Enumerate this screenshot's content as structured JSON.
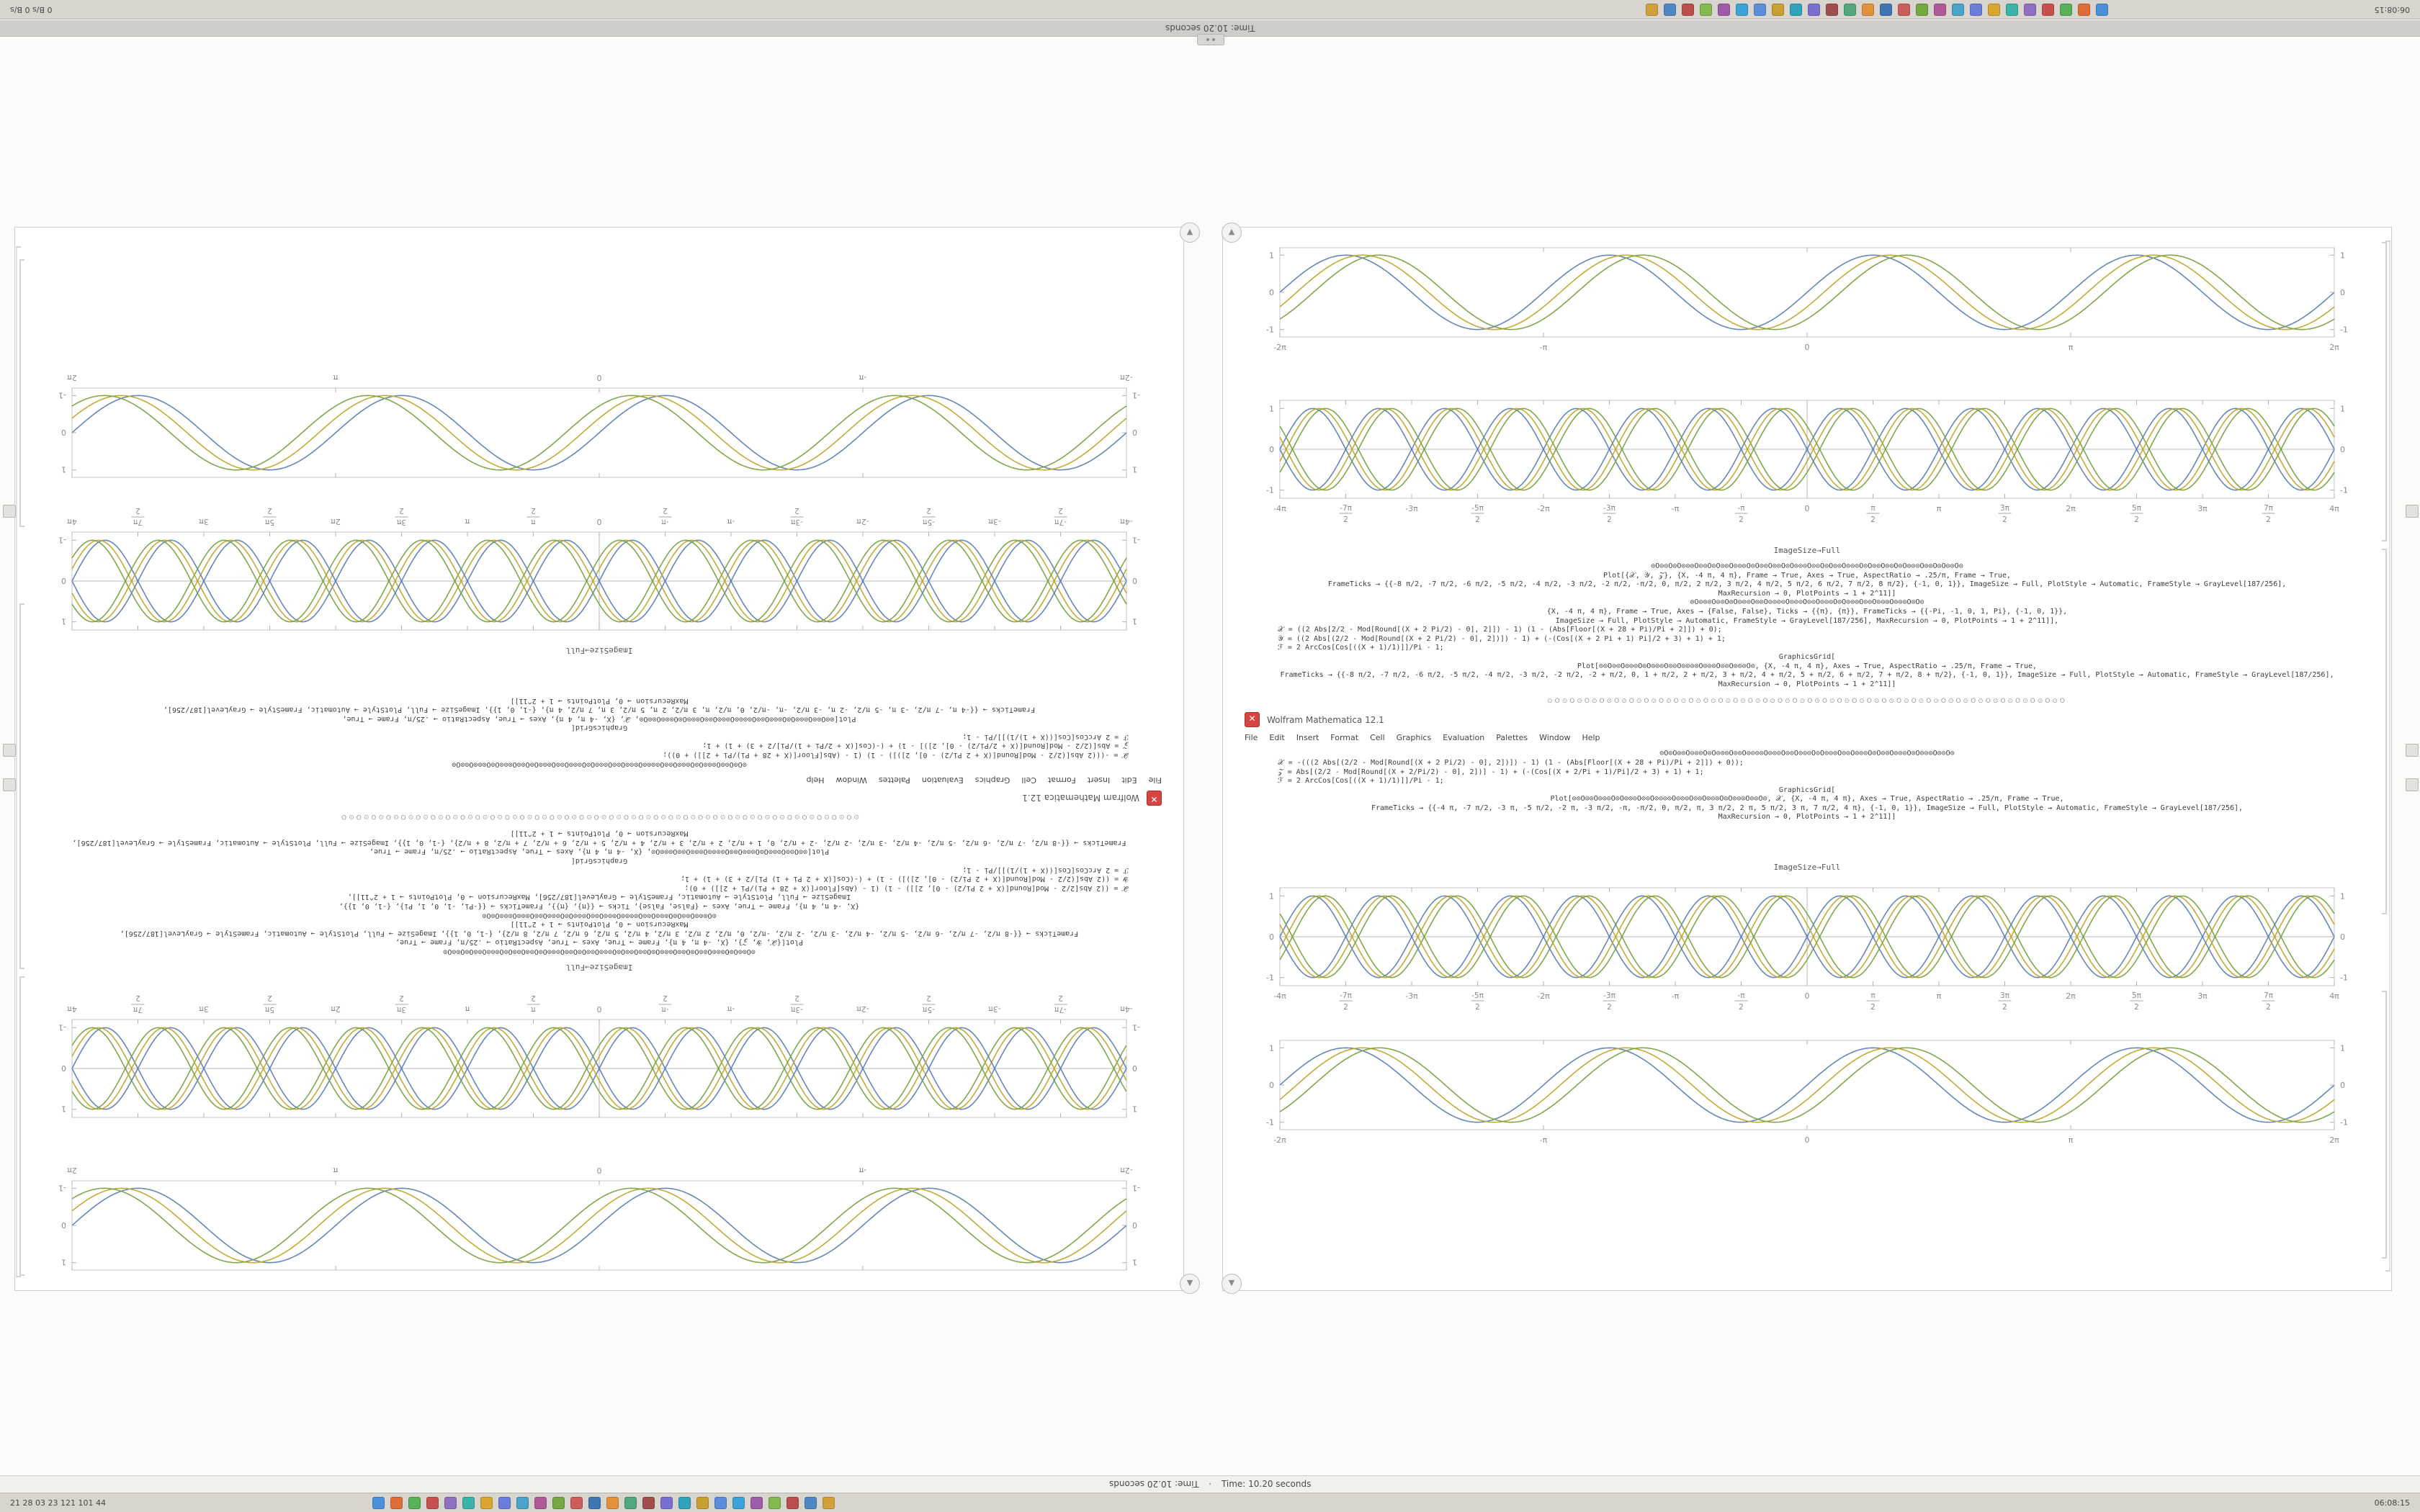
{
  "meta": {
    "app": "Wolfram Mathematica"
  },
  "top_bar": {
    "left_text": "06:08:15",
    "right_text": "0 B/s   0 B/s",
    "icons": [
      "#4a90d9",
      "#e06c3a",
      "#58b058",
      "#c94f4f",
      "#8f6fc0",
      "#3bb3a9",
      "#d8a62f",
      "#6b7ddb",
      "#4aa3c9",
      "#b05a9a",
      "#74a840",
      "#cc5d5d",
      "#3f77b5",
      "#e0913a",
      "#52a87c",
      "#a04f4f",
      "#7a6fd0",
      "#2fa3b9",
      "#c8a030",
      "#5b8ddb",
      "#3aa3d9",
      "#a05aaa",
      "#84b850",
      "#bc4d4d",
      "#4f87c5",
      "#d0a13a"
    ]
  },
  "bottom_bar": {
    "left_text": "21 28 03 23 121 101 44",
    "right_text": "06:08:15",
    "icons": [
      "#4a90d9",
      "#e06c3a",
      "#58b058",
      "#c94f4f",
      "#8f6fc0",
      "#3bb3a9",
      "#d8a62f",
      "#6b7ddb",
      "#4aa3c9",
      "#b05a9a",
      "#74a840",
      "#cc5d5d",
      "#3f77b5",
      "#e0913a",
      "#52a87c",
      "#a04f4f",
      "#7a6fd0",
      "#2fa3b9",
      "#c8a030",
      "#5b8ddb",
      "#3aa3d9",
      "#a05aaa",
      "#84b850",
      "#bc4d4d",
      "#4f87c5",
      "#d0a13a"
    ]
  },
  "title_strip": {
    "text": "Time: 10.20 seconds"
  },
  "status_strip": {
    "rotated_text": "Time: 10.20 seconds",
    "separator": "·",
    "text": "Time: 10.20 seconds"
  },
  "window": {
    "close_glyph": "✕",
    "title": "Wolfram Mathematica 12.1",
    "menu": [
      "File",
      "Edit",
      "Insert",
      "Format",
      "Cell",
      "Graphics",
      "Evaluation",
      "Palettes",
      "Window",
      "Help"
    ],
    "toolbar_glyphs": "⊙O⊙O⊙O⊙O⊙O⊙O⊙O⊙O⊙O⊙O⊙O⊙O⊙O⊙O⊙O⊙O⊙O⊙O⊙O⊙O⊙O⊙O⊙O⊙O⊙O⊙O⊙O⊙O⊙O⊙O⊙O⊙O⊙O⊙O⊙O"
  },
  "notebook": {
    "label_mid": "ImageSize→Full",
    "label_lower": "ImageSize→Full",
    "code_upper": [
      {
        "t": "⊙O⊙⊙O⊙O⊙⊙⊙O⊙⊙O⊙O⊙⊙O⊙⊙⊙O⊙O⊙⊙O⊙⊙O⊙O⊙⊙⊙O⊙⊙O⊙O⊙⊙O⊙⊙⊙O⊙O⊙⊙O⊙⊙O⊙O⊙⊙⊙O⊙⊙O⊙O⊙⊙O⊙",
        "a": "c"
      },
      {
        "t": "Plot[{𝒳, 𝒴, 𝒵}, {X, -4 π, 4 π}, Frame → True, Axes → True, AspectRatio → .25/π, Frame → True,",
        "a": "c"
      },
      {
        "t": "FrameTicks → {{-8 π/2, -7 π/2, -6 π/2, -5 π/2, -4 π/2, -3 π/2, -2 π/2, -π/2, 0, π/2, 2 π/2, 3 π/2, 4 π/2, 5 π/2, 6 π/2, 7 π/2, 8 π/2}, {-1, 0, 1}}, ImageSize → Full, PlotStyle → Automatic, FrameStyle → GrayLevel[187/256],",
        "a": "c"
      },
      {
        "t": "MaxRecursion → 0, PlotPoints → 1 + 2^11]]",
        "a": "c"
      },
      {
        "t": "⊙O⊙⊙⊙O⊙⊙O⊙O⊙⊙⊙O⊙⊙O⊙⊙⊙⊙O⊙⊙⊙O⊙⊙O⊙⊙⊙O⊙O⊙⊙⊙O⊙⊙O⊙⊙⊙O⊙⊙⊙O⊙O⊙",
        "a": "c"
      },
      {
        "t": "{X, -4 π, 4 π}, Frame → True, Axes → {False, False}, Ticks → {{π}, {π}}, FrameTicks → {{-Pi, -1, 0, 1, Pi}, {-1, 0, 1}},",
        "a": "c"
      },
      {
        "t": "ImageSize → Full, PlotStyle → Automatic, FrameStyle → GrayLevel[187/256], MaxRecursion → 0, PlotPoints → 1 + 2^11]],",
        "a": "c"
      },
      {
        "t": "𝒳 = ((2 Abs[2/2 - Mod[Round[(X + 2 Pi/2) - 0], 2]]) - 1) (1 - (Abs[Floor[(X + 28 + Pi)/Pi + 2]]) + 0);",
        "a": "l"
      },
      {
        "t": "𝒴 = ((2 Abs[(2/2 - Mod[Round[(X + 2 Pi/2) - 0], 2])]) - 1) + (-(Cos[(X + 2 Pi + 1) Pi]/2 + 3) + 1) + 1;",
        "a": "l"
      },
      {
        "t": "ℱ = 2 ArcCos[Cos[((X + 1)/1)]]/Pi - 1;",
        "a": "l"
      },
      {
        "t": "GraphicsGrid[",
        "a": "c"
      },
      {
        "t": "Plot[⊙⊙O⊙⊙O⊙⊙⊙O⊙O⊙⊙⊙O⊙⊙O⊙⊙⊙⊙O⊙⊙⊙O⊙⊙O⊙⊙⊙O⊙,  {X, -4 π, 4 π}, Axes → True, AspectRatio → .25/π, Frame → True,",
        "a": "c"
      },
      {
        "t": "FrameTicks → {{-8 π/2, -7 π/2, -6 π/2, -5 π/2, -4 π/2, -3 π/2, -2 π/2, -2 + π/2, 0, 1 + π/2, 2 + π/2, 3 + π/2, 4 + π/2, 5 + π/2, 6 + π/2, 7 + π/2, 8 + π/2}, {-1, 0, 1}}, ImageSize → Full, PlotStyle → Automatic, FrameStyle → GrayLevel[187/256],",
        "a": "c"
      },
      {
        "t": "MaxRecursion → 0, PlotPoints → 1 + 2^11]]",
        "a": "c"
      }
    ],
    "code_lower": [
      {
        "t": "⊙O⊙O⊙⊙O⊙⊙⊙O⊙O⊙⊙⊙O⊙⊙O⊙⊙⊙⊙O⊙⊙⊙O⊙⊙O⊙⊙⊙O⊙O⊙⊙⊙O⊙⊙O⊙⊙⊙O⊙O⊙⊙O⊙⊙⊙O⊙O⊙⊙⊙O⊙⊙O⊙",
        "a": "c"
      },
      {
        "t": "𝒳 = -(((2 Abs[(2/2 - Mod[Round[(X + 2 Pi/2) - 0], 2])]) - 1) (1 - (Abs[Floor[(X + 28 + Pi)/Pi + 2]]) + 0));",
        "a": "l"
      },
      {
        "t": "𝒵 = Abs[(2/2 - Mod[Round[(X + 2/Pi/2) - 0], 2])] - 1) + (-(Cos[(X + 2/Pi + 1)/Pi]/2 + 3) + 1) + 1;",
        "a": "l"
      },
      {
        "t": "ℱ = 2 ArcCos[Cos[((X + 1)/1)]]/Pi - 1;",
        "a": "l"
      },
      {
        "t": "GraphicsGrid[",
        "a": "c"
      },
      {
        "t": "Plot[⊙⊙O⊙⊙O⊙⊙⊙O⊙O⊙⊙⊙O⊙⊙O⊙⊙⊙⊙O⊙⊙⊙O⊙⊙O⊙⊙⊙O⊙O⊙⊙⊙O⊙⊙O⊙,  𝒳, {X, -4 π, 4 π}, Axes → True, AspectRatio → .25/π, Frame → True,",
        "a": "c"
      },
      {
        "t": "FrameTicks → {{-4 π, -7 π/2, -3 π, -5 π/2, -2 π, -3 π/2, -π, -π/2, 0, π/2, π, 3 π/2, 2 π, 5 π/2, 3 π, 7 π/2, 4 π}, {-1, 0, 1}}, ImageSize → Full, PlotStyle → Automatic, FrameStyle → GrayLevel[187/256],",
        "a": "c"
      },
      {
        "t": "MaxRecursion → 0, PlotPoints → 1 + 2^11]]",
        "a": "c"
      }
    ]
  },
  "chart_data": [
    {
      "id": "plot-top",
      "type": "line",
      "x_range": [
        -6.2832,
        6.2832
      ],
      "y_range": [
        -1.2,
        1.2
      ],
      "axes": false,
      "x_ticks": [
        {
          "v": -6.2832,
          "l": "-2π"
        },
        {
          "v": -3.1416,
          "l": "-π"
        },
        {
          "v": 0,
          "l": "0"
        },
        {
          "v": 3.1416,
          "l": "π"
        },
        {
          "v": 6.2832,
          "l": "2π"
        }
      ],
      "y_ticks": [
        {
          "v": -1,
          "l": "-1"
        },
        {
          "v": 0,
          "l": "0"
        },
        {
          "v": 1,
          "l": "1"
        }
      ],
      "series": [
        {
          "name": "sin(2x)",
          "freq": 2,
          "phase": 0,
          "amp": 1,
          "sign": 1,
          "color": "#5e81b5"
        },
        {
          "name": "sin(2x-0.4)",
          "freq": 2,
          "phase": -0.4,
          "amp": 1,
          "sign": 1,
          "color": "#bfa72e"
        },
        {
          "name": "sin(2x-0.8)",
          "freq": 2,
          "phase": -0.8,
          "amp": 1,
          "sign": 1,
          "color": "#79a341"
        }
      ]
    },
    {
      "id": "plot-upper-braid",
      "type": "line",
      "x_range": [
        -12.5664,
        12.5664
      ],
      "y_range": [
        -1.2,
        1.2
      ],
      "axes": true,
      "x_ticks": [
        {
          "v": -12.5664,
          "l": "-4π"
        },
        {
          "v": -10.9956,
          "l": "-7π/2"
        },
        {
          "v": -9.4248,
          "l": "-3π"
        },
        {
          "v": -7.854,
          "l": "-5π/2"
        },
        {
          "v": -6.2832,
          "l": "-2π"
        },
        {
          "v": -4.7124,
          "l": "-3π/2"
        },
        {
          "v": -3.1416,
          "l": "-π"
        },
        {
          "v": -1.5708,
          "l": "-π/2"
        },
        {
          "v": 0,
          "l": "0"
        },
        {
          "v": 1.5708,
          "l": "π/2"
        },
        {
          "v": 3.1416,
          "l": "π"
        },
        {
          "v": 4.7124,
          "l": "3π/2"
        },
        {
          "v": 6.2832,
          "l": "2π"
        },
        {
          "v": 7.854,
          "l": "5π/2"
        },
        {
          "v": 9.4248,
          "l": "3π"
        },
        {
          "v": 10.9956,
          "l": "7π/2"
        },
        {
          "v": 12.5664,
          "l": "4π"
        }
      ],
      "y_ticks": [
        {
          "v": -1,
          "l": "-1"
        },
        {
          "v": 0,
          "l": "0"
        },
        {
          "v": 1,
          "l": "1"
        }
      ],
      "series": [
        {
          "name": "sin(2x)",
          "freq": 2,
          "phase": 0,
          "amp": 1,
          "sign": 1,
          "color": "#5e81b5"
        },
        {
          "name": "sin(2x-0.3)",
          "freq": 2,
          "phase": -0.3,
          "amp": 1,
          "sign": 1,
          "color": "#bfa72e"
        },
        {
          "name": "sin(2x-0.6)",
          "freq": 2,
          "phase": -0.6,
          "amp": 1,
          "sign": 1,
          "color": "#79a341"
        },
        {
          "name": "-sin(2x)",
          "freq": 2,
          "phase": 0,
          "amp": 1,
          "sign": -1,
          "color": "#5e81b5"
        },
        {
          "name": "-sin(2x-0.3)",
          "freq": 2,
          "phase": -0.3,
          "amp": 1,
          "sign": -1,
          "color": "#bfa72e"
        },
        {
          "name": "-sin(2x-0.6)",
          "freq": 2,
          "phase": -0.6,
          "amp": 1,
          "sign": -1,
          "color": "#79a341"
        }
      ]
    },
    {
      "id": "plot-lower-braid",
      "type": "line",
      "x_range": [
        -12.5664,
        12.5664
      ],
      "y_range": [
        -1.2,
        1.2
      ],
      "axes": true,
      "x_ticks": [
        {
          "v": -12.5664,
          "l": "-4π"
        },
        {
          "v": -10.9956,
          "l": "-7π/2"
        },
        {
          "v": -9.4248,
          "l": "-3π"
        },
        {
          "v": -7.854,
          "l": "-5π/2"
        },
        {
          "v": -6.2832,
          "l": "-2π"
        },
        {
          "v": -4.7124,
          "l": "-3π/2"
        },
        {
          "v": -3.1416,
          "l": "-π"
        },
        {
          "v": -1.5708,
          "l": "-π/2"
        },
        {
          "v": 0,
          "l": "0"
        },
        {
          "v": 1.5708,
          "l": "π/2"
        },
        {
          "v": 3.1416,
          "l": "π"
        },
        {
          "v": 4.7124,
          "l": "3π/2"
        },
        {
          "v": 6.2832,
          "l": "2π"
        },
        {
          "v": 7.854,
          "l": "5π/2"
        },
        {
          "v": 9.4248,
          "l": "3π"
        },
        {
          "v": 10.9956,
          "l": "7π/2"
        },
        {
          "v": 12.5664,
          "l": "4π"
        }
      ],
      "y_ticks": [
        {
          "v": -1,
          "l": "-1"
        },
        {
          "v": 0,
          "l": "0"
        },
        {
          "v": 1,
          "l": "1"
        }
      ],
      "series": [
        {
          "name": "sin(2x)",
          "freq": 2,
          "phase": 0,
          "amp": 1,
          "sign": 1,
          "color": "#5e81b5"
        },
        {
          "name": "sin(2x-0.3)",
          "freq": 2,
          "phase": -0.3,
          "amp": 1,
          "sign": 1,
          "color": "#bfa72e"
        },
        {
          "name": "sin(2x-0.6)",
          "freq": 2,
          "phase": -0.6,
          "amp": 1,
          "sign": 1,
          "color": "#79a341"
        },
        {
          "name": "-sin(2x)",
          "freq": 2,
          "phase": 0,
          "amp": 1,
          "sign": -1,
          "color": "#5e81b5"
        },
        {
          "name": "-sin(2x-0.3)",
          "freq": 2,
          "phase": -0.3,
          "amp": 1,
          "sign": -1,
          "color": "#bfa72e"
        },
        {
          "name": "-sin(2x-0.6)",
          "freq": 2,
          "phase": -0.6,
          "amp": 1,
          "sign": -1,
          "color": "#79a341"
        }
      ]
    },
    {
      "id": "plot-bottom",
      "type": "line",
      "x_range": [
        -6.2832,
        6.2832
      ],
      "y_range": [
        -1.2,
        1.2
      ],
      "axes": false,
      "x_ticks": [
        {
          "v": -6.2832,
          "l": "-2π"
        },
        {
          "v": -3.1416,
          "l": "-π"
        },
        {
          "v": 0,
          "l": "0"
        },
        {
          "v": 3.1416,
          "l": "π"
        },
        {
          "v": 6.2832,
          "l": "2π"
        }
      ],
      "y_ticks": [
        {
          "v": -1,
          "l": "-1"
        },
        {
          "v": 0,
          "l": "0"
        },
        {
          "v": 1,
          "l": "1"
        }
      ],
      "series": [
        {
          "name": "sin(2x)",
          "freq": 2,
          "phase": 0,
          "amp": 1,
          "sign": 1,
          "color": "#5e81b5"
        },
        {
          "name": "sin(2x-0.4)",
          "freq": 2,
          "phase": -0.4,
          "amp": 1,
          "sign": 1,
          "color": "#bfa72e"
        },
        {
          "name": "sin(2x-0.8)",
          "freq": 2,
          "phase": -0.8,
          "amp": 1,
          "sign": 1,
          "color": "#79a341"
        }
      ]
    }
  ]
}
